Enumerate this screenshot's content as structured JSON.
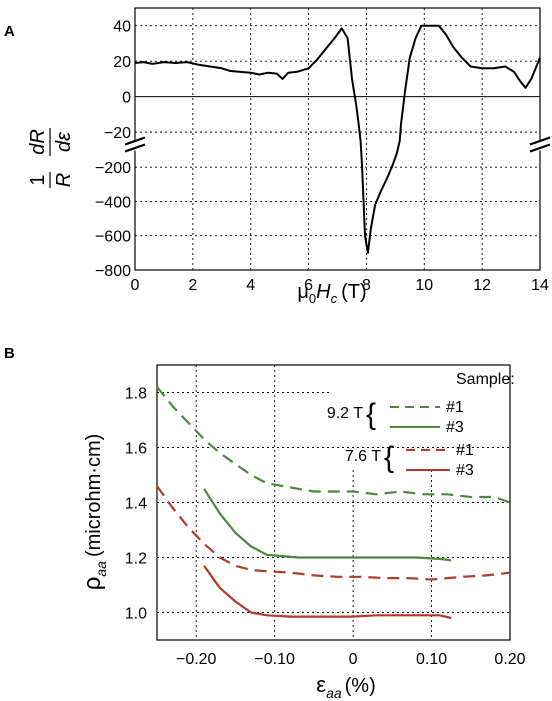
{
  "chart_data": [
    {
      "panel_label": "A",
      "type": "line",
      "xlabel": "μ0Hc (T)",
      "xlabel_parts": {
        "mu": "μ",
        "sub0": "0",
        "H": "H",
        "subc": "c",
        "unit": "(T)"
      },
      "ylabel_parts": {
        "one": "1",
        "R": "R",
        "dR": "dR",
        "deps": "dε"
      },
      "xlim": [
        0,
        14
      ],
      "x_ticks": [
        "0",
        "2",
        "4",
        "6",
        "8",
        "10",
        "12",
        "14"
      ],
      "upper_segment": {
        "ylim": [
          -25,
          50
        ],
        "y_ticks": [
          "40",
          "20",
          "0",
          "−20"
        ]
      },
      "lower_segment": {
        "ylim": [
          -800,
          -100
        ],
        "y_ticks": [
          "−200",
          "−400",
          "−600",
          "−800"
        ]
      },
      "axis_break": true,
      "series": [
        {
          "color": "#000000",
          "points": [
            [
              0,
              19
            ],
            [
              0.3,
              19.5
            ],
            [
              0.6,
              18.5
            ],
            [
              1,
              19.5
            ],
            [
              1.4,
              19
            ],
            [
              1.8,
              19.5
            ],
            [
              2.2,
              18
            ],
            [
              2.6,
              17
            ],
            [
              3,
              16
            ],
            [
              3.3,
              14.5
            ],
            [
              3.6,
              14
            ],
            [
              4,
              13.5
            ],
            [
              4.3,
              12.5
            ],
            [
              4.6,
              13.5
            ],
            [
              4.9,
              13
            ],
            [
              5.1,
              10
            ],
            [
              5.3,
              13.5
            ],
            [
              5.6,
              14
            ],
            [
              6,
              16
            ],
            [
              6.3,
              21
            ],
            [
              6.6,
              27
            ],
            [
              6.9,
              33
            ],
            [
              7.15,
              38.5
            ],
            [
              7.35,
              33
            ],
            [
              7.5,
              10
            ],
            [
              7.65,
              -5
            ],
            [
              7.75,
              -18
            ],
            [
              7.8,
              -25
            ],
            [
              7.85,
              -200
            ],
            [
              7.95,
              -600
            ],
            [
              8.05,
              -700
            ],
            [
              8.15,
              -560
            ],
            [
              8.3,
              -420
            ],
            [
              8.5,
              -340
            ],
            [
              8.7,
              -270
            ],
            [
              8.9,
              -190
            ],
            [
              9.05,
              -120
            ],
            [
              9.15,
              -25
            ],
            [
              9.2,
              -15
            ],
            [
              9.35,
              5
            ],
            [
              9.5,
              22
            ],
            [
              9.7,
              33
            ],
            [
              9.9,
              40
            ],
            [
              10.2,
              40
            ],
            [
              10.5,
              40
            ],
            [
              10.75,
              35
            ],
            [
              11,
              28
            ],
            [
              11.3,
              22
            ],
            [
              11.6,
              17
            ],
            [
              12,
              16
            ],
            [
              12.4,
              16
            ],
            [
              12.8,
              17
            ],
            [
              13.1,
              14
            ],
            [
              13.3,
              9
            ],
            [
              13.5,
              5
            ],
            [
              13.7,
              10
            ],
            [
              14,
              22
            ]
          ]
        }
      ]
    },
    {
      "panel_label": "B",
      "type": "line",
      "xlabel": "εaa (%)",
      "xlabel_parts": {
        "eps": "ε",
        "sub": "aa",
        "unit": "(%)"
      },
      "ylabel": "ρaa (microhm·cm)",
      "ylabel_parts": {
        "rho": "ρ",
        "sub": "aa",
        "unit": "(microhm·cm)"
      },
      "xlim": [
        -0.25,
        0.2
      ],
      "ylim": [
        0.9,
        1.9
      ],
      "x_ticks": [
        "−0.20",
        "−0.10",
        "0",
        "0.10",
        "0.20"
      ],
      "y_ticks": [
        "1.8",
        "1.6",
        "1.4",
        "1.2",
        "1.0"
      ],
      "legend": {
        "title": "Sample:",
        "groups": [
          {
            "field": "9.2 T",
            "entries": [
              "#1",
              "#3"
            ]
          },
          {
            "field": "7.6 T",
            "entries": [
              "#1",
              "#3"
            ]
          }
        ]
      },
      "series": [
        {
          "color": "#4a8a3a",
          "dash": "dashed",
          "points": [
            [
              -0.25,
              1.82
            ],
            [
              -0.23,
              1.75
            ],
            [
              -0.21,
              1.69
            ],
            [
              -0.19,
              1.63
            ],
            [
              -0.17,
              1.58
            ],
            [
              -0.15,
              1.54
            ],
            [
              -0.13,
              1.5
            ],
            [
              -0.11,
              1.47
            ],
            [
              -0.09,
              1.46
            ],
            [
              -0.07,
              1.45
            ],
            [
              -0.05,
              1.44
            ],
            [
              -0.03,
              1.44
            ],
            [
              0,
              1.44
            ],
            [
              0.03,
              1.43
            ],
            [
              0.06,
              1.44
            ],
            [
              0.09,
              1.43
            ],
            [
              0.12,
              1.43
            ],
            [
              0.15,
              1.42
            ],
            [
              0.18,
              1.42
            ],
            [
              0.2,
              1.4
            ]
          ]
        },
        {
          "color": "#4a8a3a",
          "dash": "solid",
          "points": [
            [
              -0.19,
              1.45
            ],
            [
              -0.17,
              1.36
            ],
            [
              -0.15,
              1.29
            ],
            [
              -0.13,
              1.24
            ],
            [
              -0.11,
              1.21
            ],
            [
              -0.09,
              1.205
            ],
            [
              -0.07,
              1.2
            ],
            [
              -0.04,
              1.2
            ],
            [
              0,
              1.2
            ],
            [
              0.04,
              1.2
            ],
            [
              0.08,
              1.2
            ],
            [
              0.11,
              1.195
            ],
            [
              0.125,
              1.19
            ]
          ]
        },
        {
          "color": "#b13a2a",
          "dash": "dashed",
          "points": [
            [
              -0.25,
              1.46
            ],
            [
              -0.23,
              1.38
            ],
            [
              -0.21,
              1.31
            ],
            [
              -0.19,
              1.25
            ],
            [
              -0.17,
              1.2
            ],
            [
              -0.15,
              1.17
            ],
            [
              -0.13,
              1.155
            ],
            [
              -0.11,
              1.15
            ],
            [
              -0.08,
              1.145
            ],
            [
              -0.05,
              1.135
            ],
            [
              -0.02,
              1.13
            ],
            [
              0.01,
              1.13
            ],
            [
              0.04,
              1.125
            ],
            [
              0.07,
              1.125
            ],
            [
              0.1,
              1.12
            ],
            [
              0.12,
              1.125
            ],
            [
              0.14,
              1.13
            ],
            [
              0.17,
              1.135
            ],
            [
              0.2,
              1.145
            ]
          ]
        },
        {
          "color": "#b13a2a",
          "dash": "solid",
          "points": [
            [
              -0.19,
              1.17
            ],
            [
              -0.17,
              1.09
            ],
            [
              -0.15,
              1.04
            ],
            [
              -0.13,
              1.0
            ],
            [
              -0.11,
              0.99
            ],
            [
              -0.08,
              0.985
            ],
            [
              -0.05,
              0.985
            ],
            [
              -0.02,
              0.985
            ],
            [
              0,
              0.985
            ],
            [
              0.03,
              0.99
            ],
            [
              0.06,
              0.99
            ],
            [
              0.09,
              0.99
            ],
            [
              0.11,
              0.99
            ],
            [
              0.125,
              0.98
            ]
          ]
        }
      ]
    }
  ]
}
